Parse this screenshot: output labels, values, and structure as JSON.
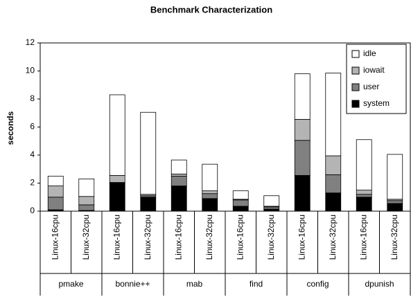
{
  "chart_data": {
    "type": "stacked_bar",
    "title": "Benchmark Characterization",
    "y_label": "seconds",
    "categories": [
      "Linux-16cpu",
      "Linux-32cpu",
      "Linux-16cpu",
      "Linux-32cpu",
      "Linux-16cpu",
      "Linux-32cpu",
      "Linux-16cpu",
      "Linux-32cpu",
      "Linux-16cpu",
      "Linux-32cpu",
      "Linux-16cpu",
      "Linux-32cpu"
    ],
    "groups": [
      "pmake",
      "bonnie++",
      "mab",
      "find",
      "config",
      "dpunish"
    ],
    "series": [
      {
        "name": "system",
        "color": "#000000",
        "values": [
          0.1,
          0.05,
          2.0,
          1.0,
          1.8,
          0.9,
          0.35,
          0.15,
          2.55,
          1.3,
          1.0,
          0.55
        ]
      },
      {
        "name": "user",
        "color": "#808080",
        "values": [
          0.9,
          0.4,
          0.05,
          0.1,
          0.7,
          0.35,
          0.45,
          0.15,
          2.5,
          1.3,
          0.2,
          0.2
        ]
      },
      {
        "name": "iowait",
        "color": "#b4b4b4",
        "values": [
          0.8,
          0.6,
          0.5,
          0.1,
          0.15,
          0.2,
          0.05,
          0.05,
          1.5,
          1.35,
          0.3,
          0.1
        ]
      },
      {
        "name": "idle",
        "color": "#ffffff",
        "values": [
          0.7,
          1.25,
          5.75,
          5.85,
          1.0,
          1.9,
          0.6,
          0.75,
          3.25,
          5.9,
          3.6,
          3.2
        ]
      }
    ],
    "ylim": [
      0,
      12
    ],
    "yticks": [
      0,
      2,
      4,
      6,
      8,
      10,
      12
    ],
    "legend": "upper right"
  }
}
